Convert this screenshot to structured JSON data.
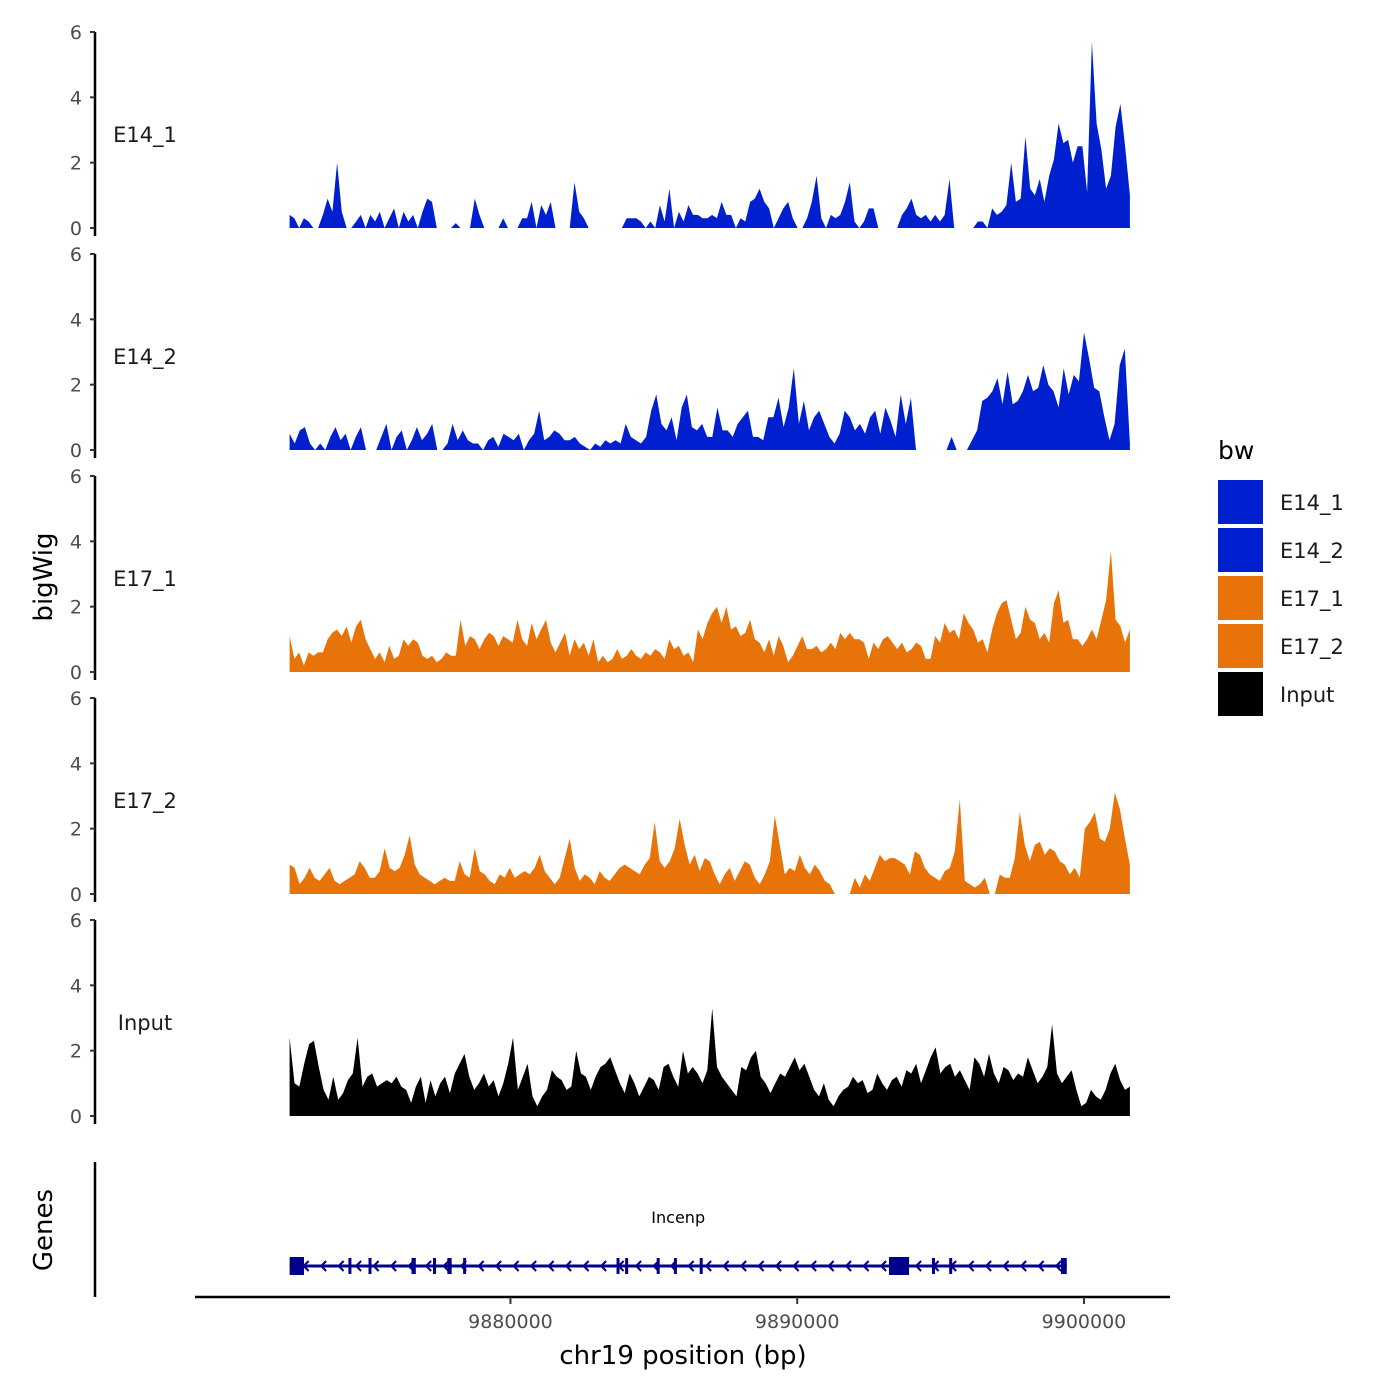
{
  "chart_data": {
    "type": "area",
    "region": {
      "chrom": "chr19",
      "start": 9872300,
      "end": 9901600
    },
    "xlim": [
      9869000,
      9903000
    ],
    "x_ticks": [
      {
        "value": 9880000,
        "label": "9880000"
      },
      {
        "value": 9890000,
        "label": "9890000"
      },
      {
        "value": 9900000,
        "label": "9900000"
      }
    ],
    "xlabel": "chr19 position (bp)",
    "ylabel": "bigWig",
    "ylim": [
      0,
      6
    ],
    "y_ticks": [
      {
        "value": 0,
        "label": "0"
      },
      {
        "value": 2,
        "label": "2"
      },
      {
        "value": 4,
        "label": "4"
      },
      {
        "value": 6,
        "label": "6"
      }
    ],
    "genes_label": "Genes",
    "legend": {
      "title": "bw",
      "entries": [
        {
          "name": "E14_1",
          "color": "#0020d0"
        },
        {
          "name": "E14_2",
          "color": "#0020d0"
        },
        {
          "name": "E17_1",
          "color": "#e87308"
        },
        {
          "name": "E17_2",
          "color": "#e87308"
        },
        {
          "name": "Input",
          "color": "#000000"
        }
      ]
    },
    "series": [
      {
        "name": "E14_1",
        "color": "#0020d0",
        "values": [
          0.4,
          0.3,
          0,
          0.3,
          0.2,
          0,
          0,
          0.4,
          0.9,
          0.5,
          2.0,
          0.5,
          0,
          0,
          0.2,
          0.4,
          0,
          0.4,
          0.2,
          0.5,
          0,
          0.3,
          0.6,
          0,
          0.5,
          0.2,
          0.4,
          0,
          0.5,
          0.9,
          0.8,
          0,
          0,
          0,
          0,
          0.15,
          0,
          0,
          0,
          0.9,
          0.4,
          0,
          0,
          0,
          0,
          0.3,
          0,
          0,
          0,
          0.3,
          0.3,
          0.8,
          0,
          0.7,
          0.4,
          0.8,
          0,
          0,
          0,
          0,
          1.4,
          0.5,
          0.3,
          0,
          0,
          0,
          0,
          0,
          0,
          0,
          0,
          0.3,
          0.3,
          0.3,
          0.2,
          0,
          0.2,
          0,
          0.7,
          0.2,
          1.2,
          0,
          0.5,
          0.2,
          0.7,
          0.4,
          0.4,
          0.3,
          0.3,
          0.4,
          0.3,
          0.8,
          0.4,
          0.4,
          0,
          0.3,
          0.2,
          0.8,
          0.9,
          1.2,
          0.8,
          0.6,
          0,
          0.3,
          0.6,
          0.8,
          0.3,
          0,
          0,
          0.3,
          0.8,
          1.6,
          0.3,
          0,
          0.4,
          0.3,
          0.4,
          0.8,
          1.4,
          0.2,
          0,
          0.2,
          0.6,
          0.6,
          0,
          0,
          0,
          0,
          0,
          0.4,
          0.6,
          0.9,
          0.4,
          0.3,
          0.4,
          0.2,
          0.4,
          0.2,
          0.4,
          1.5,
          0,
          0,
          0,
          0,
          0,
          0.2,
          0.2,
          0,
          0.6,
          0.4,
          0.5,
          0.7,
          2.0,
          0.8,
          0.9,
          2.8,
          1.2,
          1.0,
          1.5,
          0.8,
          1.6,
          2.1,
          3.2,
          2.6,
          2.7,
          2.0,
          2.5,
          2.5,
          1.1,
          5.7,
          3.2,
          2.4,
          1.2,
          1.6,
          3.1,
          3.8,
          2.5,
          1.0
        ]
      },
      {
        "name": "E14_2",
        "color": "#0020d0",
        "values": [
          0.5,
          0.2,
          0.6,
          0.7,
          0.2,
          0,
          0.2,
          0,
          0.4,
          0.7,
          0.3,
          0.5,
          0,
          0.4,
          0.7,
          0,
          0,
          0,
          0.4,
          0.8,
          0,
          0.4,
          0.6,
          0,
          0.3,
          0.7,
          0.3,
          0.5,
          0.8,
          0,
          0,
          0.2,
          0.8,
          0.3,
          0.6,
          0.3,
          0.2,
          0.2,
          0,
          0.3,
          0.4,
          0.1,
          0.5,
          0.4,
          0.3,
          0.5,
          0,
          0.3,
          0.5,
          1.2,
          0.3,
          0.4,
          0.6,
          0.5,
          0.3,
          0.3,
          0.4,
          0.2,
          0.1,
          0,
          0.2,
          0.1,
          0.3,
          0.2,
          0.3,
          0.2,
          0.8,
          0.4,
          0.3,
          0.2,
          0.4,
          1.2,
          1.7,
          0.8,
          0.6,
          1.0,
          0.3,
          1.3,
          1.7,
          0.7,
          0.6,
          0.8,
          0.4,
          0.4,
          1.3,
          0.6,
          0.6,
          0.4,
          0.8,
          1.0,
          1.2,
          0.4,
          0.4,
          0.3,
          1.0,
          1.0,
          1.6,
          0.7,
          1.3,
          2.5,
          0.8,
          1.5,
          0.6,
          1.0,
          1.2,
          0.8,
          0.4,
          0.2,
          0.5,
          1.2,
          1.0,
          0.6,
          0.8,
          0.5,
          1.0,
          1.2,
          0.5,
          1.3,
          0.9,
          0.4,
          1.7,
          0.8,
          1.6,
          0,
          0,
          0,
          0,
          0,
          0,
          0,
          0.4,
          0,
          0,
          0,
          0.3,
          0.6,
          1.5,
          1.6,
          1.8,
          2.2,
          1.4,
          2.4,
          1.4,
          1.5,
          1.8,
          2.3,
          1.8,
          1.9,
          2.6,
          2.0,
          1.8,
          1.3,
          2.5,
          1.7,
          2.3,
          2.1,
          3.6,
          2.8,
          1.9,
          1.8,
          1.0,
          0.3,
          0.8,
          2.6,
          3.1,
          0.2
        ]
      },
      {
        "name": "E17_1",
        "color": "#e87308",
        "values": [
          1.1,
          0.4,
          0.6,
          0.2,
          0.6,
          0.5,
          0.6,
          0.6,
          1.0,
          1.2,
          1.3,
          1.1,
          1.4,
          0.9,
          1.4,
          1.6,
          1.0,
          0.7,
          0.4,
          0.6,
          0.3,
          0.8,
          0.4,
          0.5,
          1.0,
          0.8,
          1.0,
          0.9,
          0.5,
          0.4,
          0.5,
          0.3,
          0.4,
          0.6,
          0.5,
          0.5,
          1.6,
          0.8,
          1.1,
          1.0,
          0.7,
          1.0,
          1.2,
          1.1,
          0.8,
          1.1,
          1.0,
          0.9,
          1.6,
          1.0,
          0.8,
          1.5,
          1.0,
          1.3,
          1.6,
          0.9,
          0.6,
          0.9,
          1.2,
          0.5,
          1.0,
          0.7,
          0.9,
          0.5,
          1.0,
          0.3,
          0.5,
          0.3,
          0.4,
          0.7,
          0.4,
          0.5,
          0.7,
          0.5,
          0.4,
          0.6,
          0.5,
          0.7,
          0.6,
          0.4,
          1.0,
          0.7,
          0.8,
          0.5,
          0.6,
          0.3,
          1.3,
          1.0,
          1.5,
          1.8,
          2.0,
          1.5,
          2.0,
          1.3,
          1.4,
          1.1,
          1.2,
          1.6,
          1.0,
          0.9,
          0.6,
          1.0,
          0.5,
          1.1,
          0.8,
          0.3,
          0.5,
          0.8,
          1.1,
          0.7,
          0.7,
          0.8,
          0.6,
          0.7,
          0.9,
          0.7,
          1.2,
          1.0,
          1.2,
          1.0,
          1.0,
          0.9,
          0.4,
          0.9,
          0.7,
          1.0,
          1.1,
          0.9,
          0.7,
          0.9,
          0.6,
          0.7,
          0.9,
          0.8,
          0.4,
          0.4,
          1.1,
          0.9,
          1.5,
          1.2,
          1.3,
          1.0,
          1.8,
          1.5,
          1.3,
          0.9,
          1.0,
          0.6,
          1.3,
          1.8,
          2.1,
          2.2,
          1.6,
          1.0,
          1.2,
          2.0,
          1.6,
          1.5,
          1.0,
          1.2,
          0.9,
          2.1,
          2.5,
          1.5,
          1.6,
          1.0,
          1.0,
          0.8,
          1.0,
          1.3,
          1.0,
          1.6,
          2.2,
          3.7,
          1.6,
          1.4,
          0.9,
          1.3
        ]
      },
      {
        "name": "E17_2",
        "color": "#e87308",
        "values": [
          0.9,
          0.8,
          0.3,
          0.5,
          0.8,
          0.5,
          0.4,
          0.6,
          0.8,
          0.4,
          0.3,
          0.4,
          0.5,
          0.6,
          1.0,
          0.8,
          0.5,
          0.5,
          0.7,
          1.4,
          0.8,
          0.7,
          0.8,
          1.2,
          1.8,
          0.9,
          0.6,
          0.5,
          0.4,
          0.3,
          0.4,
          0.5,
          0.4,
          0.4,
          1.0,
          0.6,
          0.5,
          1.4,
          0.7,
          0.6,
          0.4,
          0.3,
          0.6,
          0.5,
          0.8,
          0.5,
          0.6,
          0.7,
          0.6,
          0.8,
          1.2,
          0.7,
          0.5,
          0.3,
          0.5,
          1.1,
          1.7,
          0.8,
          0.4,
          0.6,
          0.5,
          0.3,
          0.7,
          0.5,
          0.4,
          0.6,
          0.8,
          0.9,
          0.8,
          0.7,
          0.6,
          0.9,
          1.1,
          2.2,
          1.0,
          0.8,
          1.0,
          1.4,
          2.3,
          1.5,
          0.9,
          1.2,
          0.7,
          1.1,
          1.0,
          0.6,
          0.3,
          0.6,
          0.8,
          0.4,
          0.7,
          1.0,
          0.9,
          0.5,
          0.3,
          0.6,
          1.0,
          2.4,
          1.5,
          0.6,
          0.8,
          0.7,
          1.2,
          0.8,
          0.6,
          0.9,
          0.7,
          0.4,
          0.3,
          0,
          0,
          0,
          0,
          0.5,
          0.2,
          0.6,
          0.4,
          0.8,
          1.2,
          1.0,
          1.1,
          1.1,
          1.0,
          0.9,
          0.6,
          1.3,
          1.2,
          0.8,
          0.6,
          0.5,
          0.4,
          0.7,
          0.8,
          1.3,
          2.9,
          0.4,
          0.3,
          0.2,
          0.3,
          0.5,
          0,
          0,
          0.6,
          0.5,
          0.5,
          1.1,
          2.5,
          1.5,
          1.0,
          1.5,
          1.6,
          1.2,
          1.4,
          1.3,
          1.0,
          0.9,
          0.6,
          0.8,
          0.5,
          2.0,
          2.2,
          2.5,
          1.7,
          1.6,
          2.0,
          3.1,
          2.6,
          1.7,
          0.9
        ]
      },
      {
        "name": "Input",
        "color": "#000000",
        "values": [
          2.4,
          1.0,
          0.9,
          1.6,
          2.2,
          2.3,
          1.5,
          0.8,
          0.5,
          1.2,
          0.5,
          0.7,
          1.1,
          1.3,
          2.4,
          0.9,
          1.2,
          1.3,
          0.9,
          1.0,
          1.1,
          1.0,
          1.2,
          0.9,
          0.8,
          0.4,
          0.9,
          1.2,
          0.4,
          1.1,
          0.6,
          1.0,
          1.2,
          0.7,
          1.3,
          1.6,
          1.9,
          1.2,
          0.8,
          1.0,
          1.3,
          0.9,
          1.1,
          0.6,
          1.0,
          1.6,
          2.4,
          0.8,
          1.2,
          1.6,
          0.6,
          0.3,
          0.6,
          0.8,
          1.4,
          1.2,
          1.1,
          0.8,
          0.9,
          2.0,
          1.3,
          1.2,
          0.8,
          1.2,
          1.5,
          1.6,
          1.8,
          1.4,
          1.0,
          0.7,
          1.3,
          1.0,
          0.6,
          0.9,
          1.2,
          1.1,
          0.8,
          1.5,
          1.6,
          1.2,
          0.9,
          2.0,
          1.3,
          1.5,
          1.3,
          1.0,
          1.4,
          3.3,
          1.5,
          1.2,
          1.0,
          0.8,
          0.6,
          1.5,
          1.4,
          1.8,
          2.0,
          1.2,
          1.0,
          0.7,
          1.0,
          1.3,
          1.2,
          1.5,
          1.8,
          1.4,
          1.6,
          1.2,
          0.8,
          0.6,
          1.0,
          0.5,
          0.3,
          0.6,
          0.8,
          0.9,
          1.2,
          1.0,
          1.1,
          0.7,
          0.8,
          1.3,
          1.0,
          0.8,
          1.1,
          1.2,
          0.9,
          1.4,
          1.3,
          1.6,
          1.0,
          1.4,
          1.8,
          2.1,
          1.3,
          1.5,
          1.6,
          1.2,
          1.4,
          1.1,
          0.8,
          1.8,
          1.6,
          1.2,
          1.9,
          1.3,
          1.0,
          1.5,
          1.4,
          1.1,
          1.3,
          1.2,
          1.8,
          1.4,
          1.0,
          1.2,
          1.5,
          2.8,
          1.3,
          1.0,
          1.2,
          1.4,
          0.8,
          0.3,
          0.4,
          0.8,
          0.6,
          0.5,
          0.8,
          1.3,
          1.6,
          1.1,
          0.8,
          0.9
        ]
      }
    ],
    "genes": [
      {
        "name": "Incenp",
        "start": 9872300,
        "end": 9899400,
        "strand": "-",
        "color": "#00008b",
        "exons": [
          [
            9872300,
            9872800
          ],
          [
            9874350,
            9874450
          ],
          [
            9875050,
            9875150
          ],
          [
            9876550,
            9876700
          ],
          [
            9877300,
            9877400
          ],
          [
            9877800,
            9877950
          ],
          [
            9878350,
            9878450
          ],
          [
            9883700,
            9883800
          ],
          [
            9884000,
            9884100
          ],
          [
            9885100,
            9885200
          ],
          [
            9885700,
            9885800
          ],
          [
            9886600,
            9886700
          ],
          [
            9893200,
            9893900
          ],
          [
            9894700,
            9894800
          ],
          [
            9895300,
            9895400
          ],
          [
            9899200,
            9899400
          ]
        ]
      }
    ]
  }
}
